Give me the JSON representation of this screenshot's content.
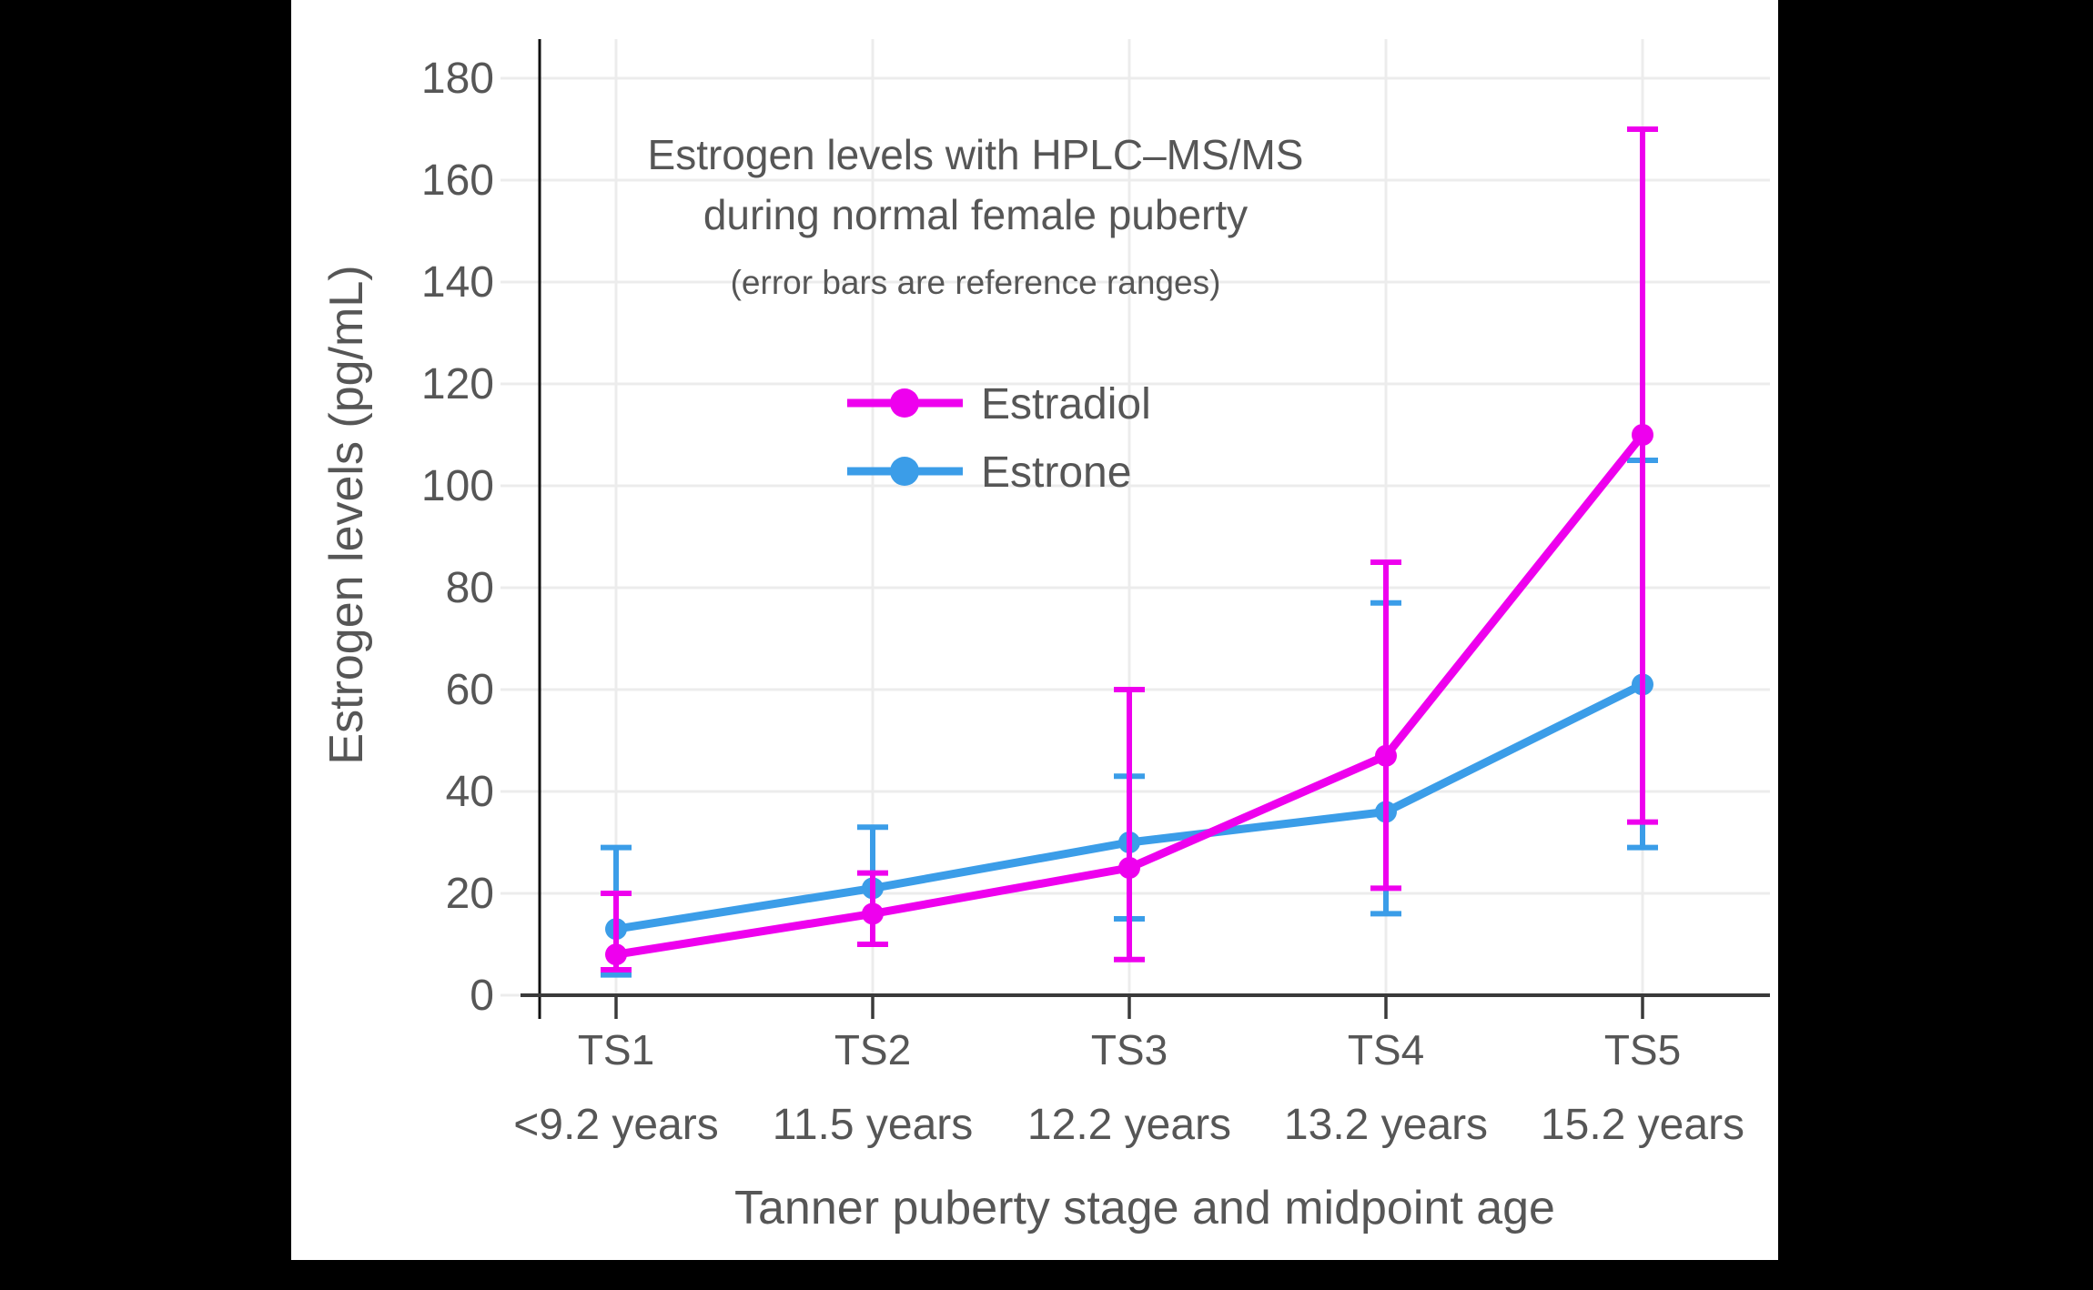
{
  "chart_data": {
    "type": "line",
    "title": "Estrogen levels with HPLC–MS/MS during normal female puberty",
    "title_lines": [
      "Estrogen levels with HPLC–MS/MS",
      "during normal female puberty"
    ],
    "subtitle": "(error bars are reference ranges)",
    "xlabel": "Tanner puberty stage and midpoint age",
    "ylabel": "Estrogen levels (pg/mL)",
    "categories": [
      "TS1",
      "TS2",
      "TS3",
      "TS4",
      "TS5"
    ],
    "category_ages": [
      "<9.2 years",
      "11.5 years",
      "12.2 years",
      "13.2 years",
      "15.2 years"
    ],
    "ylim": [
      0,
      180
    ],
    "yticks": [
      0,
      20,
      40,
      60,
      80,
      100,
      120,
      140,
      160,
      180
    ],
    "grid": true,
    "legend_position": "upper-center-inside",
    "error_bars": "reference ranges",
    "series": [
      {
        "name": "Estradiol",
        "color": "#EE00EE",
        "values": [
          8,
          16,
          25,
          47,
          110
        ],
        "error_low": [
          5,
          10,
          7,
          21,
          34
        ],
        "error_high": [
          20,
          24,
          60,
          85,
          170
        ]
      },
      {
        "name": "Estrone",
        "color": "#3B9DE8",
        "values": [
          13,
          21,
          30,
          36,
          61
        ],
        "error_low": [
          4,
          10,
          15,
          16,
          29
        ],
        "error_high": [
          29,
          33,
          43,
          77,
          105
        ]
      }
    ]
  },
  "colors": {
    "panel": "#FFFFFF",
    "background": "#000000",
    "text": "#565656",
    "axis": "#3A3A3A",
    "spine": "#101010",
    "gridline": "#ECECEC"
  }
}
